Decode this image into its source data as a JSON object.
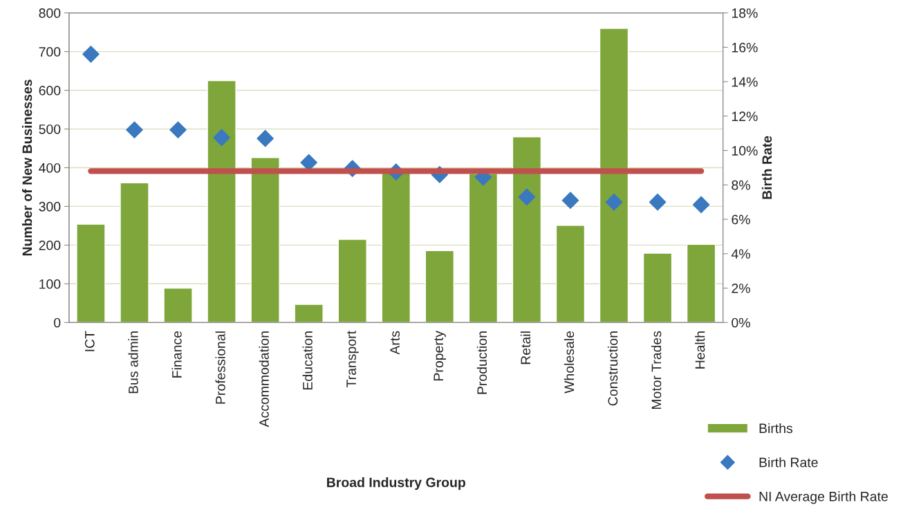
{
  "chart_data": {
    "type": "bar",
    "xlabel": "Broad Industry Group",
    "ylabel": "Number of New Businesses",
    "y2label": "Birth Rate",
    "categories": [
      "ICT",
      "Bus admin",
      "Finance",
      "Professional",
      "Accommodation",
      "Education",
      "Transport",
      "Arts",
      "Property",
      "Production",
      "Retail",
      "Wholesale",
      "Construction",
      "Motor Trades",
      "Health"
    ],
    "series": [
      {
        "name": "Births",
        "color": "#7ea63a",
        "values": [
          254,
          361,
          89,
          625,
          426,
          47,
          215,
          390,
          186,
          385,
          480,
          251,
          760,
          179,
          202
        ]
      },
      {
        "name": "Birth Rate",
        "type": "scatter",
        "axis": "y2",
        "marker": "diamond",
        "color": "#3a78c0",
        "values": [
          15.6,
          11.2,
          11.2,
          10.75,
          10.7,
          9.3,
          8.95,
          8.75,
          8.6,
          8.45,
          7.3,
          7.1,
          7.0,
          7.0,
          6.85
        ]
      },
      {
        "name": "NI Average Birth Rate",
        "type": "line",
        "axis": "y2",
        "marker": "none",
        "color": "#c0504d",
        "values": [
          8.8,
          8.8,
          8.8,
          8.8,
          8.8,
          8.8,
          8.8,
          8.8,
          8.8,
          8.8,
          8.8,
          8.8,
          8.8,
          8.8,
          8.8
        ]
      }
    ],
    "ylim": [
      0,
      800
    ],
    "yticks": [
      0,
      100,
      200,
      300,
      400,
      500,
      600,
      700,
      800
    ],
    "y2lim": [
      0,
      18
    ],
    "y2ticks": [
      {
        "value": 0,
        "label": "0%"
      },
      {
        "value": 2,
        "label": "2%"
      },
      {
        "value": 4,
        "label": "4%"
      },
      {
        "value": 6,
        "label": "6%"
      },
      {
        "value": 8,
        "label": "8%"
      },
      {
        "value": 10,
        "label": "10%"
      },
      {
        "value": 12,
        "label": "12%"
      },
      {
        "value": 14,
        "label": "14%"
      },
      {
        "value": 16,
        "label": "16%"
      },
      {
        "value": 18,
        "label": "18%"
      }
    ],
    "grid": "y",
    "legend": "bottom right"
  }
}
